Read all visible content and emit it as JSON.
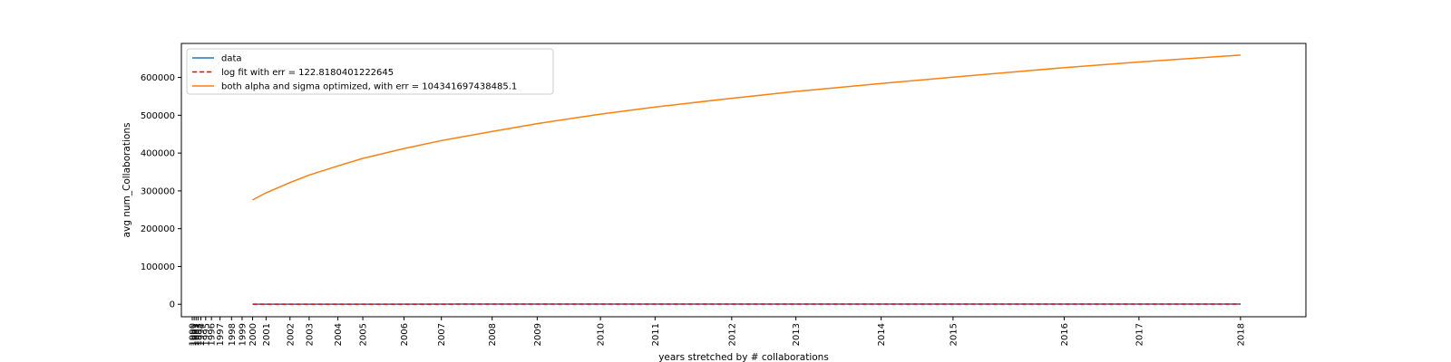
{
  "chart_data": {
    "type": "line",
    "title": "",
    "xlabel": "years stretched by # collaborations",
    "ylabel": "avg num_Collaborations",
    "ylim": [
      -33000,
      690000
    ],
    "yticks": [
      0,
      100000,
      200000,
      300000,
      400000,
      500000,
      600000
    ],
    "xrange": [
      0,
      1149
    ],
    "xticks": [
      {
        "label": "1990",
        "pos": 0
      },
      {
        "label": "1991",
        "pos": 2
      },
      {
        "label": "1992",
        "pos": 4
      },
      {
        "label": "1993",
        "pos": 6
      },
      {
        "label": "1994",
        "pos": 9
      },
      {
        "label": "1995",
        "pos": 14
      },
      {
        "label": "1996",
        "pos": 20
      },
      {
        "label": "1997",
        "pos": 29
      },
      {
        "label": "1998",
        "pos": 41
      },
      {
        "label": "1999",
        "pos": 52
      },
      {
        "label": "2000",
        "pos": 63
      },
      {
        "label": "2001",
        "pos": 77
      },
      {
        "label": "2002",
        "pos": 102
      },
      {
        "label": "2003",
        "pos": 122
      },
      {
        "label": "2004",
        "pos": 152
      },
      {
        "label": "2005",
        "pos": 178
      },
      {
        "label": "2006",
        "pos": 221
      },
      {
        "label": "2007",
        "pos": 260
      },
      {
        "label": "2008",
        "pos": 313
      },
      {
        "label": "2009",
        "pos": 360
      },
      {
        "label": "2010",
        "pos": 426
      },
      {
        "label": "2011",
        "pos": 483
      },
      {
        "label": "2012",
        "pos": 563
      },
      {
        "label": "2013",
        "pos": 630
      },
      {
        "label": "2014",
        "pos": 719
      },
      {
        "label": "2015",
        "pos": 794
      },
      {
        "label": "2016",
        "pos": 910
      },
      {
        "label": "2017",
        "pos": 988
      },
      {
        "label": "2018",
        "pos": 1094
      }
    ],
    "grid": false,
    "legend_position": "top-left",
    "series": [
      {
        "name": "data",
        "color": "#1f77b4",
        "style": "solid",
        "x": [
          63,
          200,
          400,
          600,
          800,
          1000,
          1094
        ],
        "y": [
          200,
          320,
          420,
          480,
          520,
          560,
          580
        ]
      },
      {
        "name": "log fit with err = 122.8180401222645",
        "color": "#ff0000",
        "style": "dashed",
        "x": [
          63,
          200,
          400,
          600,
          800,
          1000,
          1094
        ],
        "y": [
          180,
          320,
          420,
          480,
          520,
          555,
          575
        ]
      },
      {
        "name": "both alpha and sigma optimized, with err = 104341697438485.1",
        "color": "#ff7f0e",
        "style": "solid",
        "x": [
          63,
          77,
          102,
          122,
          152,
          178,
          221,
          260,
          313,
          360,
          426,
          483,
          563,
          630,
          719,
          794,
          910,
          988,
          1094
        ],
        "y": [
          276000,
          295000,
          322000,
          342000,
          366000,
          386000,
          412000,
          433000,
          457000,
          478000,
          503000,
          522000,
          545000,
          563000,
          584000,
          601000,
          626000,
          641000,
          659000
        ]
      }
    ]
  }
}
